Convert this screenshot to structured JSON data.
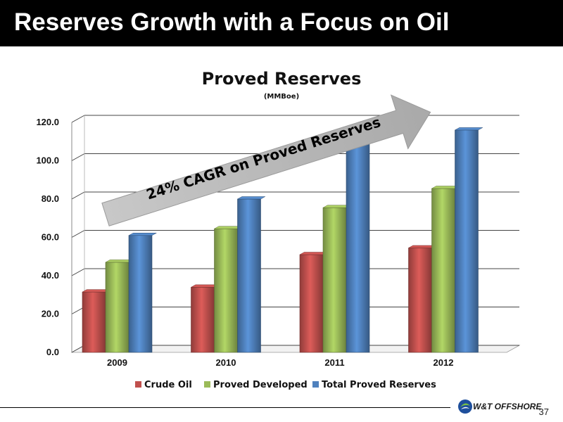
{
  "slide": {
    "title": "Reserves Growth with a Focus on Oil",
    "page_number": "37",
    "logo_text": "W&T OFFSHORE"
  },
  "chart_data": {
    "type": "bar",
    "title": "Proved Reserves",
    "subtitle": "(MMBoe)",
    "categories": [
      "2009",
      "2010",
      "2011",
      "2012"
    ],
    "series": [
      {
        "name": "Crude Oil",
        "values": [
          31.5,
          34.0,
          51.0,
          54.5
        ],
        "color": "#c0504d"
      },
      {
        "name": "Proved Developed",
        "values": [
          47.0,
          64.5,
          75.5,
          85.5
        ],
        "color": "#9bbb59"
      },
      {
        "name": "Total Proved Reserves",
        "values": [
          61.0,
          80.0,
          114.0,
          116.0
        ],
        "color": "#4f81bd"
      }
    ],
    "ylim": [
      0,
      120
    ],
    "yticks": [
      "0.0",
      "20.0",
      "40.0",
      "60.0",
      "80.0",
      "100.0",
      "120.0"
    ],
    "grid": true,
    "legend_position": "bottom",
    "annotation": "24% CAGR on Proved Reserves"
  }
}
